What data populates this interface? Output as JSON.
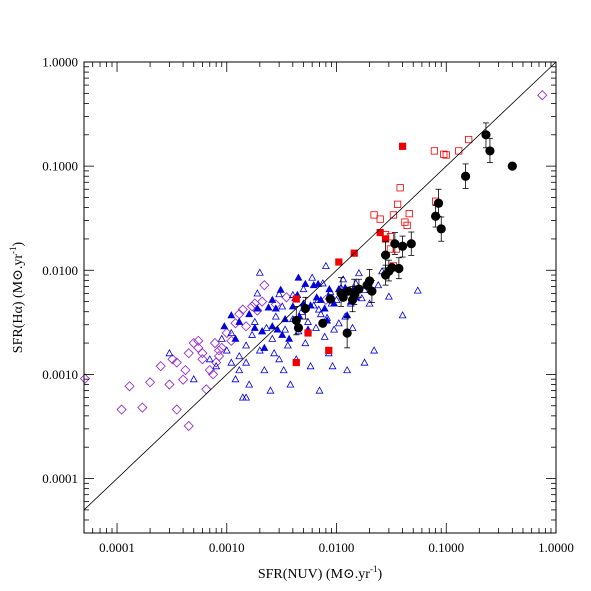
{
  "chart_data": {
    "type": "scatter",
    "x_scale": "log",
    "y_scale": "log",
    "xlim": [
      5e-05,
      1.0
    ],
    "ylim": [
      3e-05,
      1.0
    ],
    "xlabel_pre": "SFR(NUV) (M",
    "xlabel_post": ".yr",
    "ylabel_pre": "SFR(Hα) (M",
    "ylabel_post": ".yr",
    "unit_exponent": "-1",
    "x_ticks": [
      0.0001,
      0.001,
      0.01,
      0.1,
      1.0
    ],
    "x_tick_labels": [
      "0.0001",
      "0.0010",
      "0.0100",
      "0.1000",
      "1.0000"
    ],
    "y_ticks": [
      0.0001,
      0.001,
      0.01,
      0.1,
      1.0
    ],
    "y_tick_labels": [
      "0.0001",
      "0.0010",
      "0.0100",
      "0.1000",
      "1.0000"
    ],
    "grid": false,
    "reference_line": "one-to-one",
    "colors": {
      "blue": "#0000dd",
      "red": "#ee0000",
      "purple": "#9933cc",
      "black": "#000000"
    },
    "series": [
      {
        "marker": "open-diamond",
        "color": "#9933cc",
        "points": [
          [
            5e-05,
            0.00091
          ],
          [
            0.00011,
            0.00046
          ],
          [
            0.00013,
            0.00077
          ],
          [
            0.00017,
            0.00048
          ],
          [
            0.0002,
            0.00084
          ],
          [
            0.00025,
            0.0012
          ],
          [
            0.0003,
            0.0008
          ],
          [
            0.00032,
            0.0014
          ],
          [
            0.00035,
            0.00046
          ],
          [
            0.00035,
            0.0013
          ],
          [
            0.0004,
            0.00089
          ],
          [
            0.00042,
            0.0011
          ],
          [
            0.00045,
            0.0016
          ],
          [
            0.00045,
            0.00032
          ],
          [
            0.0005,
            0.002
          ],
          [
            0.00055,
            0.0021
          ],
          [
            0.00055,
            0.0018
          ],
          [
            0.0006,
            0.0014
          ],
          [
            0.0006,
            0.0016
          ],
          [
            0.00065,
            0.00072
          ],
          [
            0.0007,
            0.0011
          ],
          [
            0.00075,
            0.001
          ],
          [
            0.00078,
            0.002
          ],
          [
            0.0008,
            0.0013
          ],
          [
            0.00085,
            0.0017
          ],
          [
            0.00085,
            0.0015
          ],
          [
            0.0009,
            0.0018
          ],
          [
            0.001,
            0.0025
          ],
          [
            0.0011,
            0.0021
          ],
          [
            0.0012,
            0.0031
          ],
          [
            0.0013,
            0.0038
          ],
          [
            0.0014,
            0.0042
          ],
          [
            0.0015,
            0.0029
          ],
          [
            0.0017,
            0.0045
          ],
          [
            0.0018,
            0.0048
          ],
          [
            0.0019,
            0.0041
          ],
          [
            0.0021,
            0.005
          ],
          [
            0.0022,
            0.0072
          ],
          [
            0.0028,
            0.0047
          ],
          [
            0.0035,
            0.0055
          ],
          [
            0.008,
            0.0052
          ],
          [
            0.75,
            0.48
          ]
        ]
      },
      {
        "marker": "open-triangle",
        "color": "#0000dd",
        "points": [
          [
            0.0003,
            0.0016
          ],
          [
            0.0005,
            0.0009
          ],
          [
            0.0007,
            0.0014
          ],
          [
            0.0008,
            0.0012
          ],
          [
            0.0009,
            0.0022
          ],
          [
            0.001,
            0.0017
          ],
          [
            0.0011,
            0.0013
          ],
          [
            0.0011,
            0.0025
          ],
          [
            0.0012,
            0.0009
          ],
          [
            0.0013,
            0.0015
          ],
          [
            0.0013,
            0.0011
          ],
          [
            0.0014,
            0.0006
          ],
          [
            0.0015,
            0.0013
          ],
          [
            0.0015,
            0.0019
          ],
          [
            0.0016,
            0.0008
          ],
          [
            0.0017,
            0.0024
          ],
          [
            0.0018,
            0.0032
          ],
          [
            0.0019,
            0.006
          ],
          [
            0.002,
            0.0095
          ],
          [
            0.002,
            0.0017
          ],
          [
            0.0021,
            0.0026
          ],
          [
            0.0022,
            0.0011
          ],
          [
            0.0023,
            0.0028
          ],
          [
            0.0025,
            0.0007
          ],
          [
            0.0026,
            0.0022
          ],
          [
            0.0028,
            0.0036
          ],
          [
            0.003,
            0.0014
          ],
          [
            0.003,
            0.0059
          ],
          [
            0.0032,
            0.0045
          ],
          [
            0.0034,
            0.0027
          ],
          [
            0.0036,
            0.0019
          ],
          [
            0.0038,
            0.0008
          ],
          [
            0.004,
            0.0034
          ],
          [
            0.004,
            0.0058
          ],
          [
            0.0043,
            0.0014
          ],
          [
            0.0045,
            0.0026
          ],
          [
            0.0048,
            0.004
          ],
          [
            0.005,
            0.0066
          ],
          [
            0.0052,
            0.002
          ],
          [
            0.0055,
            0.0032
          ],
          [
            0.0058,
            0.0012
          ],
          [
            0.006,
            0.0085
          ],
          [
            0.0062,
            0.0046
          ],
          [
            0.0065,
            0.0028
          ],
          [
            0.0068,
            0.0052
          ],
          [
            0.007,
            0.0007
          ],
          [
            0.0072,
            0.0038
          ],
          [
            0.0075,
            0.0075
          ],
          [
            0.0078,
            0.0023
          ],
          [
            0.008,
            0.011
          ],
          [
            0.0082,
            0.0035
          ],
          [
            0.0085,
            0.0016
          ],
          [
            0.0088,
            0.0062
          ],
          [
            0.009,
            0.0048
          ],
          [
            0.0092,
            0.0012
          ],
          [
            0.0095,
            0.0027
          ],
          [
            0.01,
            0.0052
          ],
          [
            0.0105,
            0.0031
          ],
          [
            0.011,
            0.0068
          ],
          [
            0.0115,
            0.0082
          ],
          [
            0.012,
            0.0036
          ],
          [
            0.0125,
            0.0011
          ],
          [
            0.013,
            0.0063
          ],
          [
            0.0135,
            0.0048
          ],
          [
            0.014,
            0.0028
          ],
          [
            0.015,
            0.0075
          ],
          [
            0.016,
            0.0094
          ],
          [
            0.017,
            0.0054
          ],
          [
            0.018,
            0.0065
          ],
          [
            0.02,
            0.0048
          ],
          [
            0.022,
            0.0017
          ],
          [
            0.024,
            0.0072
          ],
          [
            0.026,
            0.0098
          ],
          [
            0.03,
            0.0056
          ],
          [
            0.04,
            0.0037
          ],
          [
            0.055,
            0.0064
          ],
          [
            0.018,
            0.0013
          ],
          [
            0.0085,
            0.0056
          ],
          [
            0.0069,
            0.0042
          ],
          [
            0.0033,
            0.0011
          ],
          [
            0.0027,
            0.0016
          ],
          [
            0.0015,
            0.0006
          ]
        ]
      },
      {
        "marker": "filled-triangle",
        "color": "#0000dd",
        "points": [
          [
            0.00095,
            0.0029
          ],
          [
            0.0011,
            0.0037
          ],
          [
            0.0012,
            0.0022
          ],
          [
            0.0013,
            0.0032
          ],
          [
            0.0016,
            0.0038
          ],
          [
            0.0018,
            0.0028
          ],
          [
            0.0019,
            0.0043
          ],
          [
            0.0021,
            0.0026
          ],
          [
            0.0022,
            0.0018
          ],
          [
            0.0024,
            0.0044
          ],
          [
            0.0026,
            0.0052
          ],
          [
            0.0028,
            0.0043
          ],
          [
            0.0029,
            0.0027
          ],
          [
            0.0032,
            0.0024
          ],
          [
            0.0034,
            0.0034
          ],
          [
            0.0037,
            0.0022
          ],
          [
            0.004,
            0.0045
          ],
          [
            0.0042,
            0.0054
          ],
          [
            0.0044,
            0.0058
          ],
          [
            0.0046,
            0.0036
          ],
          [
            0.005,
            0.0048
          ],
          [
            0.0055,
            0.0027
          ],
          [
            0.0058,
            0.0046
          ],
          [
            0.0062,
            0.0072
          ],
          [
            0.0066,
            0.0055
          ],
          [
            0.0072,
            0.0052
          ],
          [
            0.0078,
            0.0043
          ],
          [
            0.0082,
            0.0033
          ],
          [
            0.0086,
            0.0066
          ],
          [
            0.0095,
            0.0048
          ],
          [
            0.012,
            0.0068
          ],
          [
            0.0125,
            0.0037
          ],
          [
            0.0135,
            0.005
          ],
          [
            0.015,
            0.0055
          ],
          [
            0.0045,
            0.0085
          ],
          [
            0.0026,
            0.0029
          ],
          [
            0.0052,
            0.0074
          ],
          [
            0.0031,
            0.0065
          ],
          [
            0.0068,
            0.0074
          ],
          [
            0.0105,
            0.0066
          ],
          [
            0.0142,
            0.0064
          ]
        ]
      },
      {
        "marker": "filled-square",
        "color": "#ee0000",
        "points": [
          [
            0.0043,
            0.0013
          ],
          [
            0.0043,
            0.0053
          ],
          [
            0.0055,
            0.0025
          ],
          [
            0.0085,
            0.0017
          ],
          [
            0.0105,
            0.012
          ],
          [
            0.0145,
            0.0146
          ],
          [
            0.025,
            0.023
          ],
          [
            0.028,
            0.02
          ],
          [
            0.04,
            0.155
          ]
        ]
      },
      {
        "marker": "open-square",
        "color": "#ee0000",
        "points": [
          [
            0.022,
            0.034
          ],
          [
            0.025,
            0.031
          ],
          [
            0.028,
            0.022
          ],
          [
            0.031,
            0.021
          ],
          [
            0.033,
            0.034
          ],
          [
            0.035,
            0.016
          ],
          [
            0.036,
            0.043
          ],
          [
            0.038,
            0.062
          ],
          [
            0.042,
            0.029
          ],
          [
            0.044,
            0.027
          ],
          [
            0.046,
            0.035
          ],
          [
            0.08,
            0.046
          ],
          [
            0.085,
            0.044
          ],
          [
            0.095,
            0.13
          ],
          [
            0.1,
            0.128
          ],
          [
            0.13,
            0.14
          ],
          [
            0.16,
            0.18
          ],
          [
            0.078,
            0.14
          ],
          [
            0.033,
            0.011
          ],
          [
            0.031,
            0.016
          ]
        ]
      },
      {
        "marker": "filled-circle",
        "color": "#000000",
        "points": [
          [
            0.0043,
            0.0033
          ],
          [
            0.0045,
            0.0028
          ],
          [
            0.0052,
            0.0043
          ],
          [
            0.0075,
            0.0031
          ],
          [
            0.0088,
            0.0053
          ],
          [
            0.011,
            0.006
          ],
          [
            0.0115,
            0.0055
          ],
          [
            0.0125,
            0.0025
          ],
          [
            0.0128,
            0.0063
          ],
          [
            0.014,
            0.0052
          ],
          [
            0.0145,
            0.0059
          ],
          [
            0.016,
            0.0066
          ],
          [
            0.019,
            0.0072
          ],
          [
            0.02,
            0.0079
          ],
          [
            0.021,
            0.0063
          ],
          [
            0.028,
            0.014
          ],
          [
            0.028,
            0.009
          ],
          [
            0.03,
            0.0098
          ],
          [
            0.032,
            0.0106
          ],
          [
            0.034,
            0.018
          ],
          [
            0.037,
            0.0104
          ],
          [
            0.04,
            0.017
          ],
          [
            0.048,
            0.018
          ],
          [
            0.08,
            0.033
          ],
          [
            0.085,
            0.044
          ],
          [
            0.09,
            0.025
          ],
          [
            0.15,
            0.08
          ],
          [
            0.23,
            0.2
          ],
          [
            0.25,
            0.14
          ],
          [
            0.4,
            0.1
          ]
        ],
        "errors": [
          [
            0.0043,
            0.0033,
            0.0045,
            0.0024
          ],
          [
            0.0052,
            0.0043,
            0.0055,
            0.0034
          ],
          [
            0.011,
            0.006,
            0.0085,
            0.0045
          ],
          [
            0.0125,
            0.0025,
            0.0036,
            0.0018
          ],
          [
            0.014,
            0.0052,
            0.007,
            0.004
          ],
          [
            0.0145,
            0.0059,
            0.0082,
            0.0047
          ],
          [
            0.016,
            0.0066,
            0.0082,
            0.0055
          ],
          [
            0.02,
            0.0079,
            0.0102,
            0.0061
          ],
          [
            0.021,
            0.0063,
            0.008,
            0.0049
          ],
          [
            0.028,
            0.014,
            0.019,
            0.0105
          ],
          [
            0.028,
            0.009,
            0.0112,
            0.0072
          ],
          [
            0.03,
            0.0098,
            0.0125,
            0.0079
          ],
          [
            0.034,
            0.018,
            0.023,
            0.0142
          ],
          [
            0.037,
            0.0104,
            0.0132,
            0.0083
          ],
          [
            0.04,
            0.017,
            0.0213,
            0.0134
          ],
          [
            0.048,
            0.018,
            0.0233,
            0.0139
          ],
          [
            0.08,
            0.033,
            0.042,
            0.026
          ],
          [
            0.085,
            0.044,
            0.06,
            0.033
          ],
          [
            0.09,
            0.025,
            0.0325,
            0.019
          ],
          [
            0.15,
            0.08,
            0.105,
            0.061
          ],
          [
            0.23,
            0.2,
            0.26,
            0.15
          ],
          [
            0.25,
            0.14,
            0.185,
            0.108
          ]
        ]
      }
    ]
  }
}
